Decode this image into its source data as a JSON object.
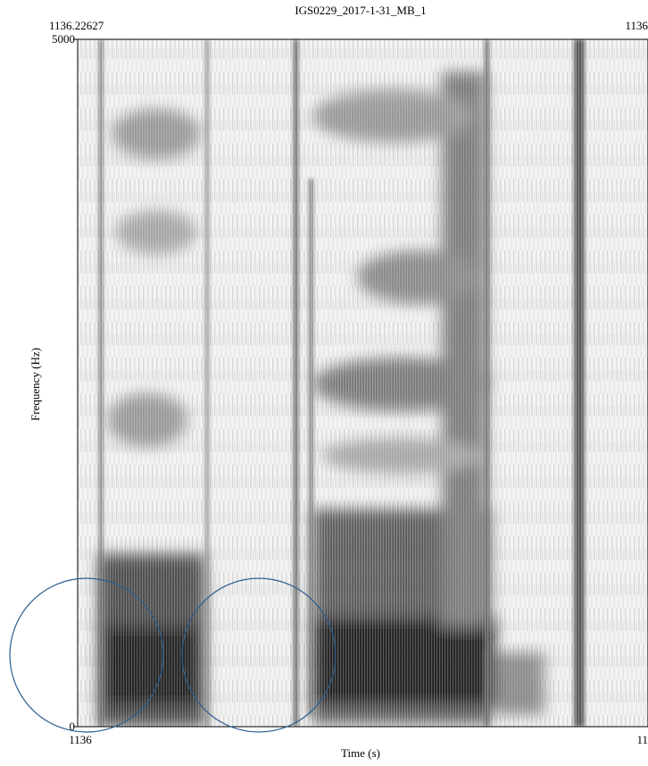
{
  "chart_data": {
    "type": "spectrogram",
    "title": "IGS0229_2017-1-31_MB_1",
    "x_label": "Time (s)",
    "y_label": "Frequency (Hz)",
    "ylim": [
      0,
      5000
    ],
    "yticks": [
      0,
      5000
    ],
    "top_left_time": "1136.22627",
    "top_right_time": "1136",
    "bottom_left_time": "1136",
    "bottom_right_time": "11"
  }
}
